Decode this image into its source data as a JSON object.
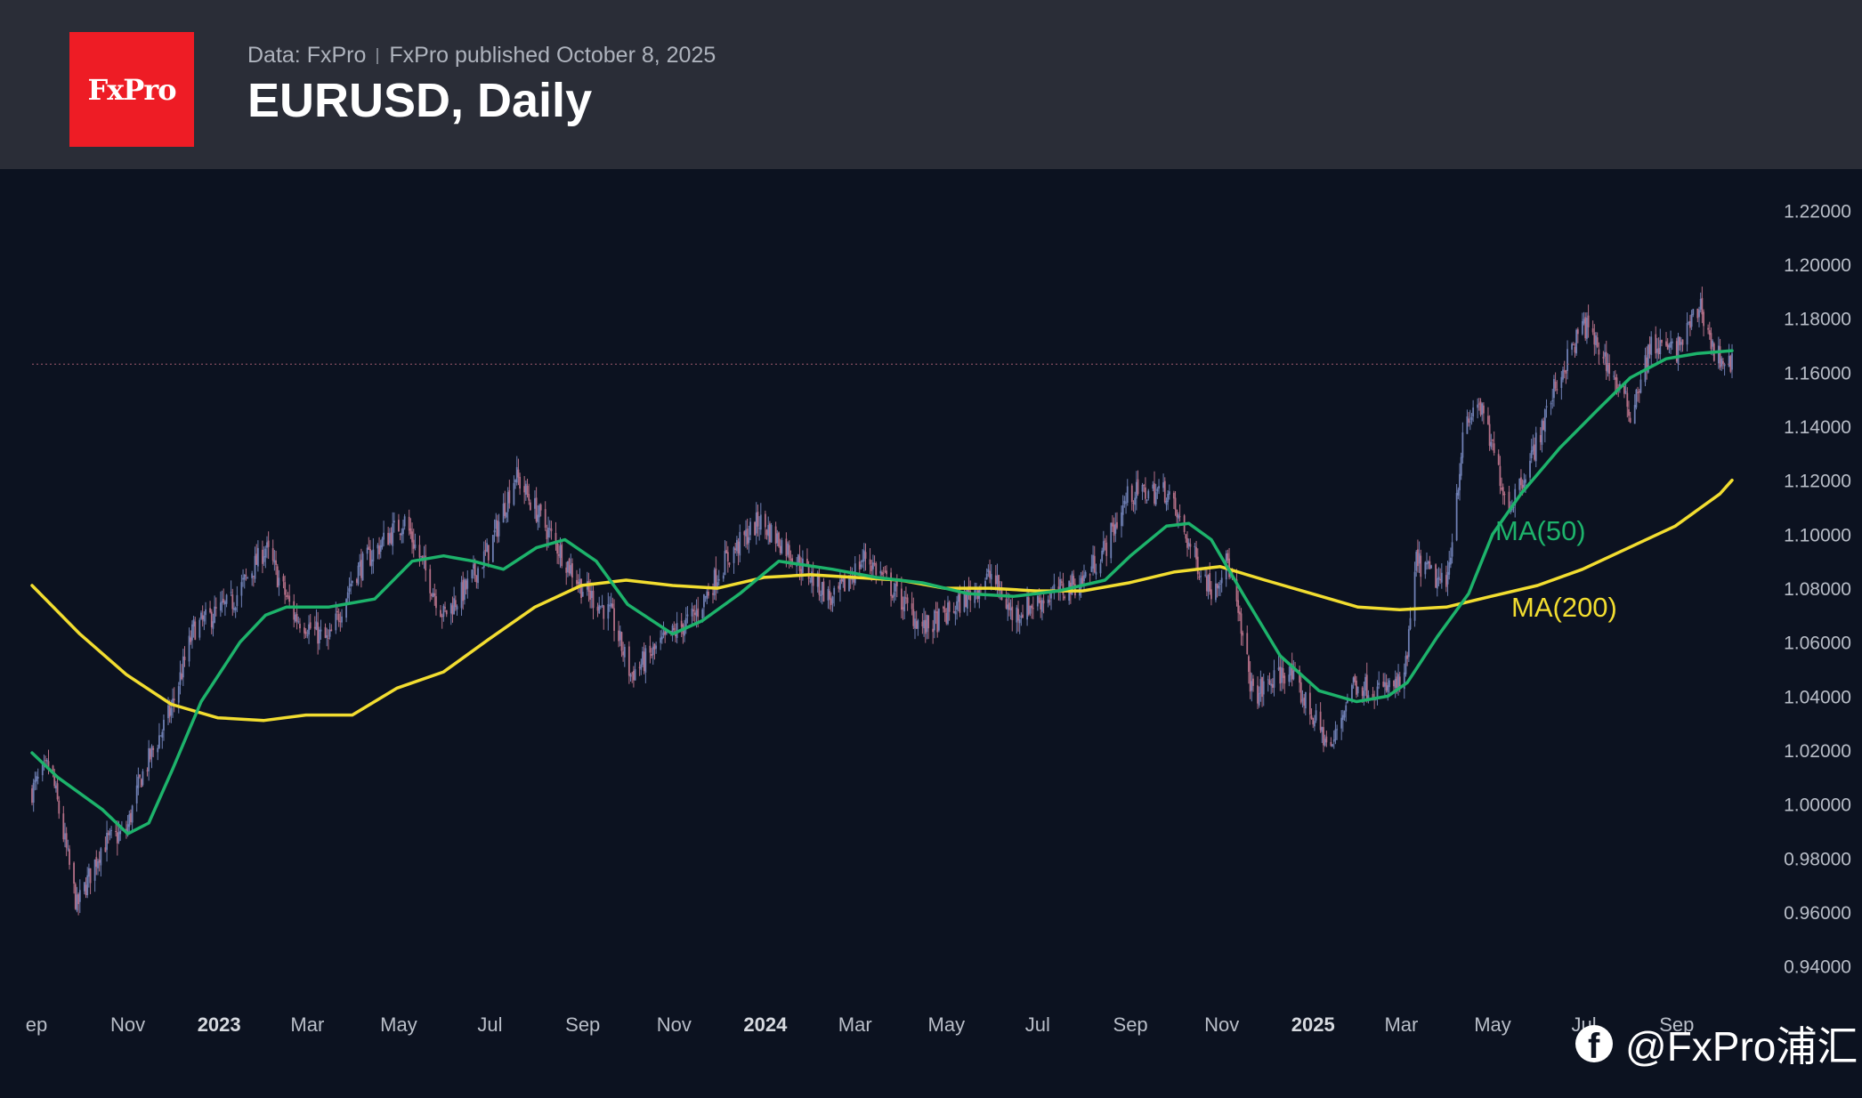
{
  "header": {
    "logo_text": "FxPro",
    "data_source": "Data: FxPro",
    "published": "FxPro published October 8, 2025",
    "title": "EURUSD, Daily"
  },
  "watermark": {
    "icon": "facebook-icon",
    "text": "@FxPro浦汇"
  },
  "colors": {
    "background": "#0c1220",
    "header": "#2a2d37",
    "logo": "#ee1c25",
    "ma50": "#1db36b",
    "ma200": "#f2dd30",
    "candle_up": "#6f7fb3",
    "candle_down": "#b46f86"
  },
  "chart_data": {
    "type": "candlestick",
    "symbol": "EURUSD",
    "timeframe": "Daily",
    "y_ticks": [
      "1.22000",
      "1.20000",
      "1.18000",
      "1.16000",
      "1.14000",
      "1.12000",
      "1.10000",
      "1.08000",
      "1.06000",
      "1.04000",
      "1.02000",
      "1.00000",
      "0.98000",
      "0.96000",
      "0.94000"
    ],
    "ylim": [
      0.932,
      1.232
    ],
    "x_ticks": [
      {
        "label": "ep",
        "date": "2022-09-01",
        "bold": false
      },
      {
        "label": "Nov",
        "date": "2022-11-01",
        "bold": false
      },
      {
        "label": "2023",
        "date": "2023-01-01",
        "bold": true
      },
      {
        "label": "Mar",
        "date": "2023-03-01",
        "bold": false
      },
      {
        "label": "May",
        "date": "2023-05-01",
        "bold": false
      },
      {
        "label": "Jul",
        "date": "2023-07-01",
        "bold": false
      },
      {
        "label": "Sep",
        "date": "2023-09-01",
        "bold": false
      },
      {
        "label": "Nov",
        "date": "2023-11-01",
        "bold": false
      },
      {
        "label": "2024",
        "date": "2024-01-01",
        "bold": true
      },
      {
        "label": "Mar",
        "date": "2024-03-01",
        "bold": false
      },
      {
        "label": "May",
        "date": "2024-05-01",
        "bold": false
      },
      {
        "label": "Jul",
        "date": "2024-07-01",
        "bold": false
      },
      {
        "label": "Sep",
        "date": "2024-09-01",
        "bold": false
      },
      {
        "label": "Nov",
        "date": "2024-11-01",
        "bold": false
      },
      {
        "label": "2025",
        "date": "2025-01-01",
        "bold": true
      },
      {
        "label": "Mar",
        "date": "2025-03-01",
        "bold": false
      },
      {
        "label": "May",
        "date": "2025-05-01",
        "bold": false
      },
      {
        "label": "Jul",
        "date": "2025-07-01",
        "bold": false
      },
      {
        "label": "Sep",
        "date": "2025-09-01",
        "bold": false
      }
    ],
    "x_range": [
      "2022-08-29",
      "2025-10-08"
    ],
    "last_price": 1.163,
    "price_path": [
      [
        "2022-08-29",
        1.005
      ],
      [
        "2022-09-10",
        1.015
      ],
      [
        "2022-09-28",
        0.962
      ],
      [
        "2022-10-15",
        0.985
      ],
      [
        "2022-10-31",
        0.99
      ],
      [
        "2022-11-10",
        1.01
      ],
      [
        "2022-11-30",
        1.035
      ],
      [
        "2022-12-15",
        1.065
      ],
      [
        "2023-01-10",
        1.075
      ],
      [
        "2023-02-01",
        1.095
      ],
      [
        "2023-02-20",
        1.07
      ],
      [
        "2023-03-15",
        1.06
      ],
      [
        "2023-04-01",
        1.085
      ],
      [
        "2023-04-25",
        1.1
      ],
      [
        "2023-05-05",
        1.105
      ],
      [
        "2023-05-31",
        1.07
      ],
      [
        "2023-06-15",
        1.08
      ],
      [
        "2023-07-01",
        1.095
      ],
      [
        "2023-07-18",
        1.122
      ],
      [
        "2023-08-10",
        1.1
      ],
      [
        "2023-09-01",
        1.08
      ],
      [
        "2023-09-20",
        1.07
      ],
      [
        "2023-10-03",
        1.048
      ],
      [
        "2023-10-25",
        1.06
      ],
      [
        "2023-11-15",
        1.07
      ],
      [
        "2023-12-05",
        1.09
      ],
      [
        "2023-12-28",
        1.105
      ],
      [
        "2024-01-15",
        1.095
      ],
      [
        "2024-02-15",
        1.075
      ],
      [
        "2024-03-08",
        1.092
      ],
      [
        "2024-04-16",
        1.065
      ],
      [
        "2024-05-01",
        1.07
      ],
      [
        "2024-05-31",
        1.085
      ],
      [
        "2024-06-14",
        1.07
      ],
      [
        "2024-07-01",
        1.075
      ],
      [
        "2024-07-31",
        1.083
      ],
      [
        "2024-08-15",
        1.095
      ],
      [
        "2024-08-31",
        1.115
      ],
      [
        "2024-09-25",
        1.116
      ],
      [
        "2024-10-15",
        1.09
      ],
      [
        "2024-10-25",
        1.08
      ],
      [
        "2024-11-05",
        1.09
      ],
      [
        "2024-11-22",
        1.04
      ],
      [
        "2024-12-15",
        1.05
      ],
      [
        "2025-01-13",
        1.02
      ],
      [
        "2025-01-27",
        1.045
      ],
      [
        "2025-02-15",
        1.042
      ],
      [
        "2025-03-03",
        1.045
      ],
      [
        "2025-03-11",
        1.09
      ],
      [
        "2025-03-31",
        1.08
      ],
      [
        "2025-04-11",
        1.135
      ],
      [
        "2025-04-21",
        1.15
      ],
      [
        "2025-05-12",
        1.11
      ],
      [
        "2025-05-28",
        1.13
      ],
      [
        "2025-06-12",
        1.155
      ],
      [
        "2025-07-01",
        1.178
      ],
      [
        "2025-07-15",
        1.165
      ],
      [
        "2025-08-01",
        1.145
      ],
      [
        "2025-08-15",
        1.17
      ],
      [
        "2025-09-01",
        1.168
      ],
      [
        "2025-09-17",
        1.185
      ],
      [
        "2025-09-26",
        1.167
      ],
      [
        "2025-10-08",
        1.163
      ]
    ],
    "ma50_path": [
      [
        "2022-08-29",
        1.019
      ],
      [
        "2022-09-15",
        1.01
      ],
      [
        "2022-10-15",
        0.998
      ],
      [
        "2022-11-01",
        0.989
      ],
      [
        "2022-11-15",
        0.993
      ],
      [
        "2022-12-01",
        1.013
      ],
      [
        "2022-12-20",
        1.038
      ],
      [
        "2023-01-15",
        1.06
      ],
      [
        "2023-02-01",
        1.07
      ],
      [
        "2023-02-15",
        1.073
      ],
      [
        "2023-03-15",
        1.073
      ],
      [
        "2023-04-15",
        1.076
      ],
      [
        "2023-05-10",
        1.09
      ],
      [
        "2023-05-31",
        1.092
      ],
      [
        "2023-06-20",
        1.09
      ],
      [
        "2023-07-10",
        1.087
      ],
      [
        "2023-08-01",
        1.095
      ],
      [
        "2023-08-20",
        1.098
      ],
      [
        "2023-09-10",
        1.09
      ],
      [
        "2023-10-01",
        1.074
      ],
      [
        "2023-10-31",
        1.063
      ],
      [
        "2023-11-20",
        1.068
      ],
      [
        "2023-12-15",
        1.078
      ],
      [
        "2024-01-10",
        1.09
      ],
      [
        "2024-02-15",
        1.087
      ],
      [
        "2024-03-15",
        1.084
      ],
      [
        "2024-04-15",
        1.082
      ],
      [
        "2024-05-15",
        1.078
      ],
      [
        "2024-06-15",
        1.077
      ],
      [
        "2024-07-15",
        1.079
      ],
      [
        "2024-08-15",
        1.083
      ],
      [
        "2024-09-01",
        1.092
      ],
      [
        "2024-09-25",
        1.103
      ],
      [
        "2024-10-10",
        1.104
      ],
      [
        "2024-10-25",
        1.098
      ],
      [
        "2024-11-15",
        1.078
      ],
      [
        "2024-12-10",
        1.055
      ],
      [
        "2025-01-05",
        1.042
      ],
      [
        "2025-01-30",
        1.038
      ],
      [
        "2025-02-20",
        1.04
      ],
      [
        "2025-03-05",
        1.045
      ],
      [
        "2025-03-25",
        1.062
      ],
      [
        "2025-04-15",
        1.078
      ],
      [
        "2025-05-01",
        1.1
      ],
      [
        "2025-05-20",
        1.115
      ],
      [
        "2025-06-15",
        1.132
      ],
      [
        "2025-07-10",
        1.146
      ],
      [
        "2025-08-01",
        1.158
      ],
      [
        "2025-08-25",
        1.165
      ],
      [
        "2025-09-15",
        1.167
      ],
      [
        "2025-10-08",
        1.168
      ]
    ],
    "ma200_path": [
      [
        "2022-08-29",
        1.081
      ],
      [
        "2022-09-30",
        1.063
      ],
      [
        "2022-10-31",
        1.048
      ],
      [
        "2022-11-30",
        1.037
      ],
      [
        "2022-12-31",
        1.032
      ],
      [
        "2023-01-31",
        1.031
      ],
      [
        "2023-02-28",
        1.033
      ],
      [
        "2023-03-31",
        1.033
      ],
      [
        "2023-04-30",
        1.043
      ],
      [
        "2023-05-31",
        1.049
      ],
      [
        "2023-06-30",
        1.061
      ],
      [
        "2023-07-31",
        1.073
      ],
      [
        "2023-08-31",
        1.081
      ],
      [
        "2023-09-30",
        1.083
      ],
      [
        "2023-10-31",
        1.081
      ],
      [
        "2023-11-30",
        1.08
      ],
      [
        "2023-12-31",
        1.084
      ],
      [
        "2024-01-31",
        1.085
      ],
      [
        "2024-02-29",
        1.084
      ],
      [
        "2024-03-31",
        1.083
      ],
      [
        "2024-04-30",
        1.08
      ],
      [
        "2024-05-31",
        1.08
      ],
      [
        "2024-06-30",
        1.079
      ],
      [
        "2024-07-31",
        1.079
      ],
      [
        "2024-08-31",
        1.082
      ],
      [
        "2024-09-30",
        1.086
      ],
      [
        "2024-10-31",
        1.088
      ],
      [
        "2024-11-30",
        1.083
      ],
      [
        "2024-12-31",
        1.078
      ],
      [
        "2025-01-31",
        1.073
      ],
      [
        "2025-02-28",
        1.072
      ],
      [
        "2025-03-31",
        1.073
      ],
      [
        "2025-04-30",
        1.077
      ],
      [
        "2025-05-31",
        1.081
      ],
      [
        "2025-06-30",
        1.087
      ],
      [
        "2025-07-31",
        1.095
      ],
      [
        "2025-08-31",
        1.103
      ],
      [
        "2025-09-30",
        1.115
      ],
      [
        "2025-10-08",
        1.12
      ]
    ],
    "series": [
      {
        "name": "MA(50)",
        "color": "#1db36b"
      },
      {
        "name": "MA(200)",
        "color": "#f2dd30"
      }
    ]
  }
}
